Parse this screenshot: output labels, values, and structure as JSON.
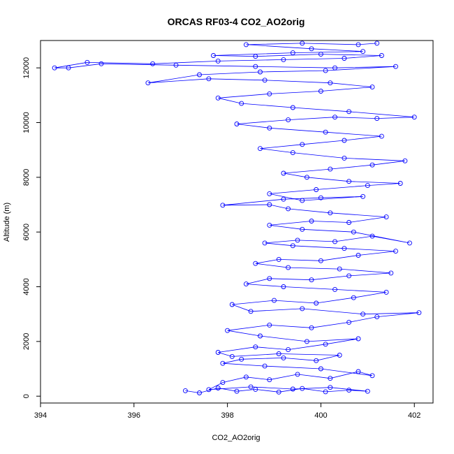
{
  "chart_data": {
    "type": "scatter",
    "title": "ORCAS RF03-4 CO2_AO2orig",
    "xlabel": "CO2_AO2orig",
    "ylabel": "Altitude (m)",
    "xlim": [
      394,
      402.4
    ],
    "ylim": [
      -250,
      13000
    ],
    "x_ticks": [
      394,
      396,
      398,
      400,
      402
    ],
    "y_ticks": [
      0,
      2000,
      4000,
      6000,
      8000,
      10000,
      12000
    ],
    "grid": false,
    "marker": "open-circle",
    "connected": true,
    "series_color": "#0000ff",
    "points": [
      [
        397.1,
        200
      ],
      [
        397.4,
        120
      ],
      [
        397.8,
        300
      ],
      [
        398.2,
        180
      ],
      [
        398.6,
        250
      ],
      [
        399.1,
        150
      ],
      [
        399.6,
        280
      ],
      [
        400.1,
        160
      ],
      [
        400.6,
        220
      ],
      [
        401.0,
        180
      ],
      [
        400.2,
        320
      ],
      [
        399.4,
        260
      ],
      [
        398.5,
        340
      ],
      [
        397.6,
        240
      ],
      [
        397.9,
        500
      ],
      [
        398.4,
        700
      ],
      [
        398.9,
        600
      ],
      [
        399.5,
        800
      ],
      [
        400.2,
        650
      ],
      [
        400.8,
        900
      ],
      [
        401.1,
        750
      ],
      [
        400.0,
        1000
      ],
      [
        398.8,
        1100
      ],
      [
        397.9,
        1200
      ],
      [
        398.3,
        1350
      ],
      [
        399.2,
        1400
      ],
      [
        399.9,
        1300
      ],
      [
        400.4,
        1500
      ],
      [
        399.1,
        1550
      ],
      [
        398.1,
        1450
      ],
      [
        397.8,
        1600
      ],
      [
        398.6,
        1800
      ],
      [
        399.3,
        1700
      ],
      [
        400.1,
        1900
      ],
      [
        400.8,
        2100
      ],
      [
        399.7,
        2000
      ],
      [
        398.7,
        2200
      ],
      [
        398.0,
        2400
      ],
      [
        398.9,
        2600
      ],
      [
        399.8,
        2500
      ],
      [
        400.6,
        2700
      ],
      [
        401.2,
        2900
      ],
      [
        402.1,
        3050
      ],
      [
        400.9,
        3000
      ],
      [
        399.6,
        3200
      ],
      [
        398.5,
        3100
      ],
      [
        398.1,
        3350
      ],
      [
        399.0,
        3500
      ],
      [
        399.9,
        3400
      ],
      [
        400.7,
        3600
      ],
      [
        401.4,
        3800
      ],
      [
        400.3,
        3900
      ],
      [
        399.2,
        4000
      ],
      [
        398.4,
        4100
      ],
      [
        398.9,
        4300
      ],
      [
        399.8,
        4250
      ],
      [
        400.6,
        4400
      ],
      [
        401.5,
        4500
      ],
      [
        400.4,
        4650
      ],
      [
        399.3,
        4700
      ],
      [
        398.6,
        4850
      ],
      [
        399.1,
        5000
      ],
      [
        400.0,
        4950
      ],
      [
        400.8,
        5150
      ],
      [
        401.6,
        5300
      ],
      [
        400.5,
        5400
      ],
      [
        399.4,
        5500
      ],
      [
        398.8,
        5600
      ],
      [
        399.5,
        5700
      ],
      [
        400.3,
        5650
      ],
      [
        401.1,
        5850
      ],
      [
        401.9,
        5600
      ],
      [
        400.7,
        6000
      ],
      [
        399.6,
        6100
      ],
      [
        398.9,
        6250
      ],
      [
        399.8,
        6400
      ],
      [
        400.6,
        6350
      ],
      [
        401.4,
        6550
      ],
      [
        400.2,
        6700
      ],
      [
        399.3,
        6850
      ],
      [
        398.9,
        7000
      ],
      [
        397.9,
        6980
      ],
      [
        399.2,
        7200
      ],
      [
        400.0,
        7250
      ],
      [
        400.9,
        7300
      ],
      [
        399.6,
        7150
      ],
      [
        398.9,
        7400
      ],
      [
        399.9,
        7550
      ],
      [
        401.0,
        7700
      ],
      [
        401.7,
        7780
      ],
      [
        400.6,
        7850
      ],
      [
        399.7,
        8000
      ],
      [
        399.2,
        8150
      ],
      [
        400.2,
        8300
      ],
      [
        401.1,
        8450
      ],
      [
        401.8,
        8600
      ],
      [
        400.5,
        8700
      ],
      [
        399.4,
        8900
      ],
      [
        398.7,
        9050
      ],
      [
        399.6,
        9200
      ],
      [
        400.5,
        9350
      ],
      [
        401.3,
        9500
      ],
      [
        400.1,
        9650
      ],
      [
        398.9,
        9800
      ],
      [
        398.2,
        9950
      ],
      [
        399.3,
        10100
      ],
      [
        400.3,
        10200
      ],
      [
        401.2,
        10150
      ],
      [
        402.0,
        10200
      ],
      [
        400.6,
        10400
      ],
      [
        399.4,
        10550
      ],
      [
        398.3,
        10700
      ],
      [
        397.8,
        10900
      ],
      [
        398.9,
        11050
      ],
      [
        400.0,
        11150
      ],
      [
        401.1,
        11300
      ],
      [
        400.2,
        11450
      ],
      [
        398.8,
        11550
      ],
      [
        397.6,
        11600
      ],
      [
        396.3,
        11450
      ],
      [
        397.4,
        11750
      ],
      [
        398.7,
        11850
      ],
      [
        400.1,
        11900
      ],
      [
        401.6,
        12050
      ],
      [
        400.3,
        12000
      ],
      [
        398.6,
        12050
      ],
      [
        396.9,
        12100
      ],
      [
        395.3,
        12150
      ],
      [
        394.6,
        12000
      ],
      [
        394.3,
        12000
      ],
      [
        395.0,
        12200
      ],
      [
        396.4,
        12150
      ],
      [
        397.8,
        12250
      ],
      [
        399.2,
        12300
      ],
      [
        400.5,
        12350
      ],
      [
        401.3,
        12450
      ],
      [
        400.0,
        12500
      ],
      [
        398.6,
        12420
      ],
      [
        397.7,
        12450
      ],
      [
        399.4,
        12550
      ],
      [
        400.9,
        12600
      ],
      [
        399.8,
        12700
      ],
      [
        398.4,
        12850
      ],
      [
        399.6,
        12900
      ],
      [
        400.8,
        12850
      ],
      [
        401.2,
        12900
      ]
    ]
  }
}
